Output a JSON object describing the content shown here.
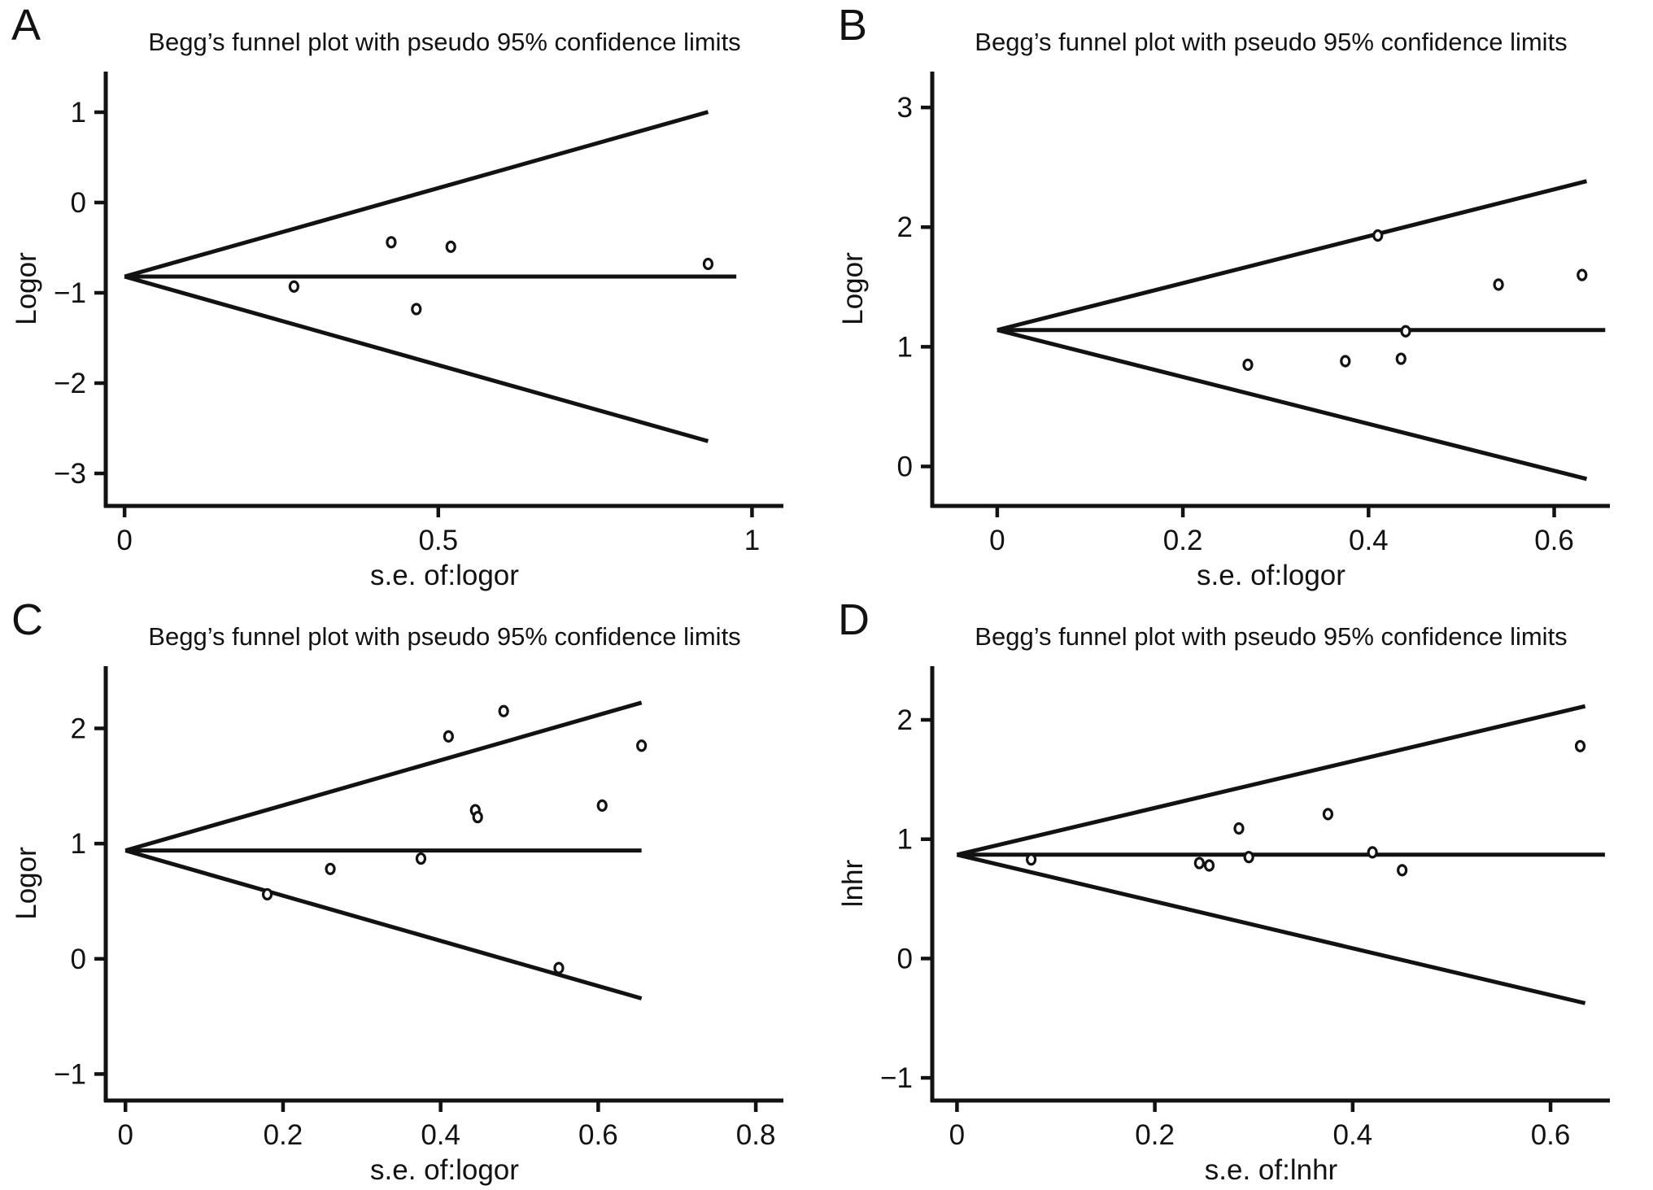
{
  "figure": {
    "background": "#ffffff",
    "ink_color": "#121212",
    "marker_style": "open-circle",
    "marker_fill": "#ffffff"
  },
  "chart_data": [
    {
      "panel": "A",
      "type": "scatter",
      "title": "Begg’s funnel plot with pseudo 95% confidence limits",
      "xlabel": "s.e. of:logor",
      "ylabel": "Logor",
      "xlim": [
        -0.03,
        1.05
      ],
      "ylim": [
        -3.36,
        1.45
      ],
      "grid": false,
      "xticks": [
        {
          "v": 0,
          "label": "0"
        },
        {
          "v": 0.5,
          "label": "0.5"
        },
        {
          "v": 1,
          "label": "1"
        }
      ],
      "yticks": [
        {
          "v": 1,
          "label": "1"
        },
        {
          "v": 0,
          "label": "0"
        },
        {
          "v": -1,
          "label": "−1"
        },
        {
          "v": -2,
          "label": "−2"
        },
        {
          "v": -3,
          "label": "−3"
        }
      ],
      "funnel": {
        "center": -0.82,
        "multiplier": 1.96,
        "se_max": 0.93,
        "center_line_end": 0.975,
        "upper_limit_at_se_max": 1.0,
        "lower_limit_at_se_max": -2.64
      },
      "point_format": [
        "se_of_logor",
        "logor"
      ],
      "points": [
        [
          0.27,
          -0.93
        ],
        [
          0.425,
          -0.44
        ],
        [
          0.465,
          -1.18
        ],
        [
          0.52,
          -0.49
        ],
        [
          0.93,
          -0.68
        ]
      ]
    },
    {
      "panel": "B",
      "type": "scatter",
      "title": "Begg’s funnel plot with pseudo 95% confidence limits",
      "xlabel": "s.e. of:logor",
      "ylabel": "Logor",
      "xlim": [
        -0.07,
        0.66
      ],
      "ylim": [
        -0.33,
        3.3
      ],
      "grid": false,
      "xticks": [
        {
          "v": 0,
          "label": "0"
        },
        {
          "v": 0.2,
          "label": "0.2"
        },
        {
          "v": 0.4,
          "label": "0.4"
        },
        {
          "v": 0.6,
          "label": "0.6"
        }
      ],
      "yticks": [
        {
          "v": 3,
          "label": "3"
        },
        {
          "v": 2,
          "label": "2"
        },
        {
          "v": 1,
          "label": "1"
        },
        {
          "v": 0,
          "label": "0"
        }
      ],
      "funnel": {
        "center": 1.14,
        "multiplier": 1.96,
        "se_max": 0.635,
        "center_line_end": 0.655,
        "upper_limit_at_se_max": 2.38,
        "lower_limit_at_se_max": -0.1
      },
      "point_format": [
        "se_of_logor",
        "logor"
      ],
      "points": [
        [
          0.27,
          0.85
        ],
        [
          0.375,
          0.88
        ],
        [
          0.41,
          1.93
        ],
        [
          0.435,
          0.9
        ],
        [
          0.44,
          1.13
        ],
        [
          0.54,
          1.52
        ],
        [
          0.63,
          1.6
        ]
      ]
    },
    {
      "panel": "C",
      "type": "scatter",
      "title": "Begg’s funnel plot with pseudo 95% confidence limits",
      "xlabel": "s.e. of:logor",
      "ylabel": "Logor",
      "xlim": [
        -0.025,
        0.835
      ],
      "ylim": [
        -1.23,
        2.54
      ],
      "grid": false,
      "xticks": [
        {
          "v": 0,
          "label": "0"
        },
        {
          "v": 0.2,
          "label": "0.2"
        },
        {
          "v": 0.4,
          "label": "0.4"
        },
        {
          "v": 0.6,
          "label": "0.6"
        },
        {
          "v": 0.8,
          "label": "0.8"
        }
      ],
      "yticks": [
        {
          "v": 2,
          "label": "2"
        },
        {
          "v": 1,
          "label": "1"
        },
        {
          "v": 0,
          "label": "0"
        },
        {
          "v": -1,
          "label": "−1"
        }
      ],
      "funnel": {
        "center": 0.94,
        "multiplier": 1.96,
        "se_max": 0.655,
        "center_line_end": 0.655,
        "upper_limit_at_se_max": 2.22,
        "lower_limit_at_se_max": -0.34
      },
      "point_format": [
        "se_of_logor",
        "logor"
      ],
      "points": [
        [
          0.18,
          0.56
        ],
        [
          0.26,
          0.78
        ],
        [
          0.375,
          0.87
        ],
        [
          0.41,
          1.93
        ],
        [
          0.444,
          1.29
        ],
        [
          0.447,
          1.23
        ],
        [
          0.48,
          2.15
        ],
        [
          0.55,
          -0.08
        ],
        [
          0.605,
          1.33
        ],
        [
          0.655,
          1.85
        ]
      ]
    },
    {
      "panel": "D",
      "type": "scatter",
      "title": "Begg’s funnel plot with pseudo 95% confidence limits",
      "xlabel": "s.e. of:lnhr",
      "ylabel": "lnhr",
      "xlim": [
        -0.025,
        0.66
      ],
      "ylim": [
        -1.19,
        2.45
      ],
      "grid": false,
      "xticks": [
        {
          "v": 0,
          "label": "0"
        },
        {
          "v": 0.2,
          "label": "0.2"
        },
        {
          "v": 0.4,
          "label": "0.4"
        },
        {
          "v": 0.6,
          "label": "0.6"
        }
      ],
      "yticks": [
        {
          "v": 2,
          "label": "2"
        },
        {
          "v": 1,
          "label": "1"
        },
        {
          "v": 0,
          "label": "0"
        },
        {
          "v": -1,
          "label": "−1"
        }
      ],
      "funnel": {
        "center": 0.87,
        "multiplier": 1.96,
        "se_max": 0.635,
        "center_line_end": 0.655,
        "upper_limit_at_se_max": 2.11,
        "lower_limit_at_se_max": -0.37
      },
      "point_format": [
        "se_of_lnhr",
        "lnhr"
      ],
      "points": [
        [
          0.075,
          0.83
        ],
        [
          0.245,
          0.8
        ],
        [
          0.255,
          0.78
        ],
        [
          0.285,
          1.09
        ],
        [
          0.295,
          0.85
        ],
        [
          0.375,
          1.21
        ],
        [
          0.42,
          0.89
        ],
        [
          0.45,
          0.74
        ],
        [
          0.63,
          1.78
        ]
      ]
    }
  ]
}
